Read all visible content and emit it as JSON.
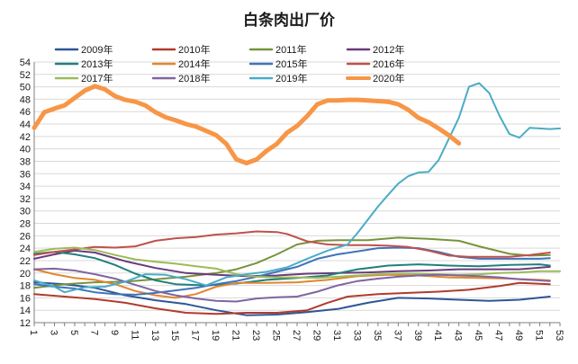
{
  "chart_data": {
    "type": "line",
    "title": "白条肉出厂价",
    "xlabel": "",
    "ylabel": "",
    "xlim": [
      1,
      53
    ],
    "ylim": [
      12,
      54
    ],
    "y_step": 2,
    "x_tick_labels": [
      "1",
      "3",
      "5",
      "7",
      "9",
      "11",
      "13",
      "15",
      "17",
      "19",
      "21",
      "23",
      "25",
      "27",
      "29",
      "31",
      "33",
      "35",
      "37",
      "39",
      "41",
      "43",
      "45",
      "47",
      "49",
      "51",
      "53"
    ],
    "grid": "horizontal",
    "legend_position": "top",
    "series": [
      {
        "name": "2009年",
        "color": "#2e5597",
        "width": 2,
        "points": [
          [
            1,
            18.5
          ],
          [
            4,
            18.2
          ],
          [
            7,
            17.6
          ],
          [
            10,
            16.4
          ],
          [
            13,
            15.6
          ],
          [
            16,
            15.0
          ],
          [
            19,
            14.0
          ],
          [
            22,
            13.2
          ],
          [
            25,
            13.3
          ],
          [
            28,
            13.7
          ],
          [
            31,
            14.2
          ],
          [
            34,
            15.2
          ],
          [
            37,
            16.0
          ],
          [
            40,
            15.9
          ],
          [
            43,
            15.7
          ],
          [
            46,
            15.5
          ],
          [
            49,
            15.7
          ],
          [
            52,
            16.2
          ]
        ]
      },
      {
        "name": "2010年",
        "color": "#b13b2c",
        "width": 2,
        "points": [
          [
            1,
            16.6
          ],
          [
            4,
            16.2
          ],
          [
            7,
            15.8
          ],
          [
            10,
            15.2
          ],
          [
            13,
            14.3
          ],
          [
            16,
            13.6
          ],
          [
            19,
            13.4
          ],
          [
            22,
            13.6
          ],
          [
            25,
            13.6
          ],
          [
            28,
            14.0
          ],
          [
            30,
            15.2
          ],
          [
            32,
            16.2
          ],
          [
            35,
            16.6
          ],
          [
            38,
            16.8
          ],
          [
            41,
            17.0
          ],
          [
            44,
            17.3
          ],
          [
            47,
            17.9
          ],
          [
            49,
            18.4
          ],
          [
            52,
            18.2
          ]
        ]
      },
      {
        "name": "2011年",
        "color": "#77933c",
        "width": 2,
        "points": [
          [
            1,
            17.6
          ],
          [
            4,
            18.2
          ],
          [
            7,
            18.5
          ],
          [
            10,
            18.6
          ],
          [
            13,
            19.0
          ],
          [
            16,
            19.4
          ],
          [
            19,
            20.0
          ],
          [
            21,
            20.6
          ],
          [
            23,
            21.6
          ],
          [
            25,
            23.0
          ],
          [
            27,
            24.6
          ],
          [
            29,
            25.2
          ],
          [
            31,
            25.3
          ],
          [
            34,
            25.3
          ],
          [
            37,
            25.7
          ],
          [
            40,
            25.5
          ],
          [
            43,
            25.2
          ],
          [
            45,
            24.3
          ],
          [
            48,
            23.1
          ],
          [
            50,
            22.8
          ],
          [
            52,
            22.9
          ]
        ]
      },
      {
        "name": "2012年",
        "color": "#6b3a7c",
        "width": 2,
        "points": [
          [
            1,
            22.3
          ],
          [
            3,
            23.0
          ],
          [
            5,
            23.6
          ],
          [
            7,
            23.3
          ],
          [
            10,
            21.9
          ],
          [
            13,
            20.8
          ],
          [
            16,
            20.0
          ],
          [
            19,
            19.7
          ],
          [
            22,
            19.5
          ],
          [
            25,
            19.6
          ],
          [
            28,
            19.9
          ],
          [
            31,
            20.0
          ],
          [
            34,
            20.1
          ],
          [
            37,
            20.3
          ],
          [
            40,
            20.4
          ],
          [
            43,
            20.6
          ],
          [
            46,
            20.6
          ],
          [
            49,
            20.6
          ],
          [
            52,
            21.0
          ]
        ]
      },
      {
        "name": "2013年",
        "color": "#21807a",
        "width": 2,
        "points": [
          [
            1,
            23.1
          ],
          [
            3,
            23.4
          ],
          [
            5,
            23.0
          ],
          [
            7,
            22.4
          ],
          [
            9,
            21.3
          ],
          [
            11,
            19.9
          ],
          [
            13,
            18.8
          ],
          [
            15,
            18.2
          ],
          [
            18,
            18.0
          ],
          [
            21,
            18.3
          ],
          [
            24,
            18.9
          ],
          [
            27,
            19.2
          ],
          [
            30,
            19.6
          ],
          [
            33,
            20.6
          ],
          [
            36,
            21.2
          ],
          [
            39,
            21.4
          ],
          [
            42,
            21.2
          ],
          [
            45,
            21.1
          ],
          [
            48,
            21.3
          ],
          [
            51,
            21.4
          ],
          [
            52,
            21.2
          ]
        ]
      },
      {
        "name": "2014年",
        "color": "#e0862d",
        "width": 2,
        "points": [
          [
            1,
            20.6
          ],
          [
            3,
            19.8
          ],
          [
            5,
            19.2
          ],
          [
            7,
            18.9
          ],
          [
            9,
            18.2
          ],
          [
            11,
            17.1
          ],
          [
            13,
            16.4
          ],
          [
            15,
            16.0
          ],
          [
            17,
            16.6
          ],
          [
            19,
            17.8
          ],
          [
            21,
            18.4
          ],
          [
            24,
            18.4
          ],
          [
            27,
            18.5
          ],
          [
            30,
            18.9
          ],
          [
            33,
            19.5
          ],
          [
            36,
            19.7
          ],
          [
            39,
            19.6
          ],
          [
            42,
            19.3
          ],
          [
            45,
            19.2
          ],
          [
            48,
            19.1
          ],
          [
            51,
            18.9
          ],
          [
            52,
            18.8
          ]
        ]
      },
      {
        "name": "2015年",
        "color": "#3f73ba",
        "width": 2,
        "points": [
          [
            1,
            18.2
          ],
          [
            3,
            17.8
          ],
          [
            5,
            17.5
          ],
          [
            7,
            16.9
          ],
          [
            9,
            16.6
          ],
          [
            11,
            16.5
          ],
          [
            13,
            16.8
          ],
          [
            15,
            17.2
          ],
          [
            17,
            17.6
          ],
          [
            19,
            18.2
          ],
          [
            21,
            18.7
          ],
          [
            23,
            19.4
          ],
          [
            25,
            20.2
          ],
          [
            27,
            21.0
          ],
          [
            29,
            22.3
          ],
          [
            31,
            23.0
          ],
          [
            33,
            23.5
          ],
          [
            35,
            24.0
          ],
          [
            37,
            24.1
          ],
          [
            39,
            24.0
          ],
          [
            41,
            23.4
          ],
          [
            43,
            22.6
          ],
          [
            45,
            22.3
          ],
          [
            48,
            22.3
          ],
          [
            51,
            22.3
          ],
          [
            52,
            22.4
          ]
        ]
      },
      {
        "name": "2016年",
        "color": "#c0504d",
        "width": 2,
        "points": [
          [
            1,
            22.9
          ],
          [
            3,
            23.4
          ],
          [
            5,
            23.8
          ],
          [
            7,
            24.2
          ],
          [
            9,
            24.1
          ],
          [
            11,
            24.3
          ],
          [
            13,
            25.2
          ],
          [
            15,
            25.6
          ],
          [
            17,
            25.8
          ],
          [
            19,
            26.2
          ],
          [
            21,
            26.4
          ],
          [
            23,
            26.7
          ],
          [
            25,
            26.6
          ],
          [
            26,
            26.3
          ],
          [
            28,
            25.1
          ],
          [
            30,
            24.6
          ],
          [
            32,
            24.5
          ],
          [
            34,
            24.5
          ],
          [
            36,
            24.4
          ],
          [
            38,
            24.2
          ],
          [
            40,
            23.6
          ],
          [
            42,
            22.8
          ],
          [
            44,
            22.6
          ],
          [
            46,
            22.6
          ],
          [
            48,
            22.6
          ],
          [
            50,
            22.9
          ],
          [
            52,
            23.3
          ]
        ]
      },
      {
        "name": "2017年",
        "color": "#9bbb59",
        "width": 2,
        "points": [
          [
            1,
            23.4
          ],
          [
            3,
            23.9
          ],
          [
            5,
            24.1
          ],
          [
            7,
            23.7
          ],
          [
            9,
            22.9
          ],
          [
            11,
            22.2
          ],
          [
            13,
            21.8
          ],
          [
            15,
            21.5
          ],
          [
            17,
            21.1
          ],
          [
            19,
            20.7
          ],
          [
            21,
            19.8
          ],
          [
            23,
            19.4
          ],
          [
            25,
            19.3
          ],
          [
            27,
            19.3
          ],
          [
            29,
            19.2
          ],
          [
            31,
            19.4
          ],
          [
            33,
            19.6
          ],
          [
            35,
            19.8
          ],
          [
            37,
            19.9
          ],
          [
            39,
            19.9
          ],
          [
            41,
            19.8
          ],
          [
            43,
            19.7
          ],
          [
            45,
            19.8
          ],
          [
            47,
            20.0
          ],
          [
            49,
            20.1
          ],
          [
            51,
            20.3
          ],
          [
            53,
            20.3
          ]
        ]
      },
      {
        "name": "2018年",
        "color": "#8064a2",
        "width": 2,
        "points": [
          [
            1,
            20.6
          ],
          [
            3,
            20.7
          ],
          [
            5,
            20.4
          ],
          [
            7,
            19.8
          ],
          [
            9,
            19.1
          ],
          [
            11,
            18.1
          ],
          [
            13,
            17.1
          ],
          [
            15,
            16.4
          ],
          [
            17,
            15.9
          ],
          [
            19,
            15.5
          ],
          [
            21,
            15.4
          ],
          [
            23,
            15.9
          ],
          [
            25,
            16.1
          ],
          [
            27,
            16.2
          ],
          [
            29,
            17.0
          ],
          [
            31,
            18.0
          ],
          [
            33,
            18.7
          ],
          [
            35,
            19.1
          ],
          [
            37,
            19.4
          ],
          [
            39,
            19.6
          ],
          [
            41,
            19.7
          ],
          [
            43,
            19.6
          ],
          [
            45,
            19.5
          ],
          [
            47,
            19.3
          ],
          [
            49,
            19.0
          ],
          [
            51,
            18.8
          ],
          [
            52,
            18.7
          ]
        ]
      },
      {
        "name": "2019年",
        "color": "#4bacc6",
        "width": 2,
        "points": [
          [
            1,
            18.8
          ],
          [
            3,
            17.8
          ],
          [
            4,
            16.9
          ],
          [
            6,
            17.7
          ],
          [
            8,
            17.8
          ],
          [
            10,
            18.6
          ],
          [
            12,
            19.8
          ],
          [
            14,
            19.7
          ],
          [
            16,
            19.0
          ],
          [
            18,
            18.0
          ],
          [
            20,
            19.3
          ],
          [
            22,
            19.8
          ],
          [
            24,
            20.2
          ],
          [
            26,
            20.9
          ],
          [
            28,
            22.3
          ],
          [
            30,
            23.6
          ],
          [
            32,
            24.6
          ],
          [
            33,
            26.5
          ],
          [
            34,
            28.6
          ],
          [
            35,
            30.7
          ],
          [
            36,
            32.6
          ],
          [
            37,
            34.4
          ],
          [
            38,
            35.6
          ],
          [
            39,
            36.2
          ],
          [
            40,
            36.3
          ],
          [
            41,
            38.2
          ],
          [
            42,
            41.6
          ],
          [
            43,
            45.0
          ],
          [
            44,
            50.0
          ],
          [
            45,
            50.6
          ],
          [
            46,
            49.0
          ],
          [
            47,
            45.4
          ],
          [
            48,
            42.4
          ],
          [
            49,
            41.8
          ],
          [
            50,
            43.4
          ],
          [
            51,
            43.3
          ],
          [
            52,
            43.2
          ],
          [
            53,
            43.3
          ]
        ]
      },
      {
        "name": "2020年",
        "color": "#f79646",
        "width": 5,
        "points": [
          [
            1,
            43.4
          ],
          [
            2,
            45.9
          ],
          [
            3,
            46.5
          ],
          [
            4,
            47.0
          ],
          [
            5,
            48.2
          ],
          [
            6,
            49.4
          ],
          [
            7,
            50.1
          ],
          [
            8,
            49.6
          ],
          [
            9,
            48.5
          ],
          [
            10,
            47.9
          ],
          [
            11,
            47.6
          ],
          [
            12,
            47.0
          ],
          [
            13,
            45.9
          ],
          [
            14,
            45.1
          ],
          [
            15,
            44.6
          ],
          [
            16,
            44.0
          ],
          [
            17,
            43.6
          ],
          [
            18,
            42.9
          ],
          [
            19,
            42.2
          ],
          [
            20,
            40.8
          ],
          [
            21,
            38.3
          ],
          [
            22,
            37.7
          ],
          [
            23,
            38.3
          ],
          [
            24,
            39.7
          ],
          [
            25,
            40.8
          ],
          [
            26,
            42.6
          ],
          [
            27,
            43.7
          ],
          [
            28,
            45.3
          ],
          [
            29,
            47.2
          ],
          [
            30,
            47.8
          ],
          [
            31,
            47.8
          ],
          [
            32,
            47.9
          ],
          [
            33,
            47.9
          ],
          [
            34,
            47.8
          ],
          [
            35,
            47.7
          ],
          [
            36,
            47.6
          ],
          [
            37,
            47.2
          ],
          [
            38,
            46.3
          ],
          [
            39,
            45.0
          ],
          [
            40,
            44.3
          ],
          [
            41,
            43.3
          ],
          [
            42,
            42.2
          ],
          [
            43,
            40.9
          ]
        ]
      }
    ]
  }
}
